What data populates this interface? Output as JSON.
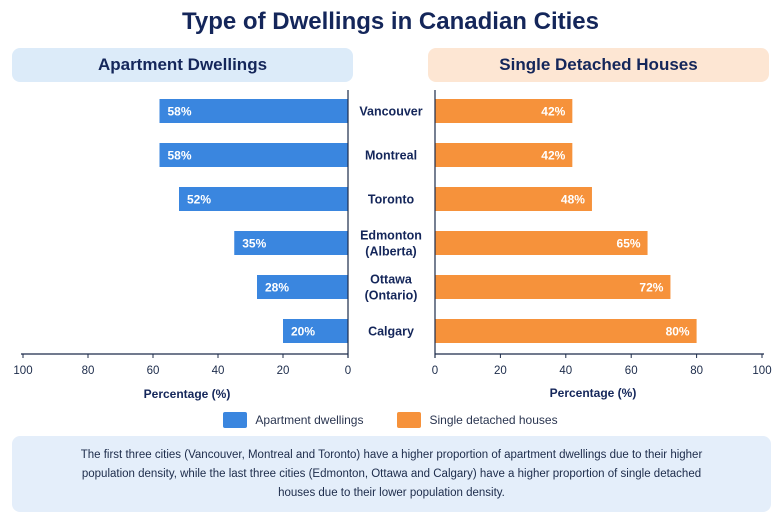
{
  "title": "Type of Dwellings in Canadian Cities",
  "panels": {
    "left_title": "Apartment Dwellings",
    "right_title": "Single Detached Houses"
  },
  "colors": {
    "apartment": "#3a86df",
    "detached": "#f6923b",
    "left_header_bg": "#dcebf9",
    "right_header_bg": "#fde6d3",
    "axis": "#1c2b4a",
    "title": "#14265a"
  },
  "legend": {
    "apartment": "Apartment dwellings",
    "detached": "Single detached houses"
  },
  "note": "The first three cities (Vancouver,  Montreal and Toronto) have a higher proportion of apartment dwellings due to their higher population density, while the last three cities (Edmonton, Ottawa and Calgary) have a higher proportion of single detached houses due to their lower population density.",
  "chart_data": {
    "type": "bar",
    "orientation": "horizontal-butterfly",
    "categories": [
      [
        "Vancouver"
      ],
      [
        "Montreal"
      ],
      [
        "Toronto"
      ],
      [
        "Edmonton",
        "(Alberta)"
      ],
      [
        "Ottawa",
        "(Ontario)"
      ],
      [
        "Calgary"
      ]
    ],
    "series": [
      {
        "name": "Apartment dwellings",
        "values": [
          58,
          58,
          52,
          35,
          28,
          20
        ],
        "labels": [
          "58%",
          "58%",
          "52%",
          "35%",
          "28%",
          "20%"
        ]
      },
      {
        "name": "Single detached houses",
        "values": [
          42,
          42,
          48,
          65,
          72,
          80
        ],
        "labels": [
          "42%",
          "42%",
          "48%",
          "65%",
          "72%",
          "80%"
        ]
      }
    ],
    "left_axis": {
      "label": "Percentage (%)",
      "range": [
        100,
        0
      ],
      "ticks": [
        100,
        80,
        60,
        40,
        20,
        0
      ]
    },
    "right_axis": {
      "label": "Percentage (%)",
      "range": [
        0,
        100
      ],
      "ticks": [
        0,
        20,
        40,
        60,
        80,
        100
      ]
    },
    "grid": false,
    "legend_position": "bottom"
  }
}
